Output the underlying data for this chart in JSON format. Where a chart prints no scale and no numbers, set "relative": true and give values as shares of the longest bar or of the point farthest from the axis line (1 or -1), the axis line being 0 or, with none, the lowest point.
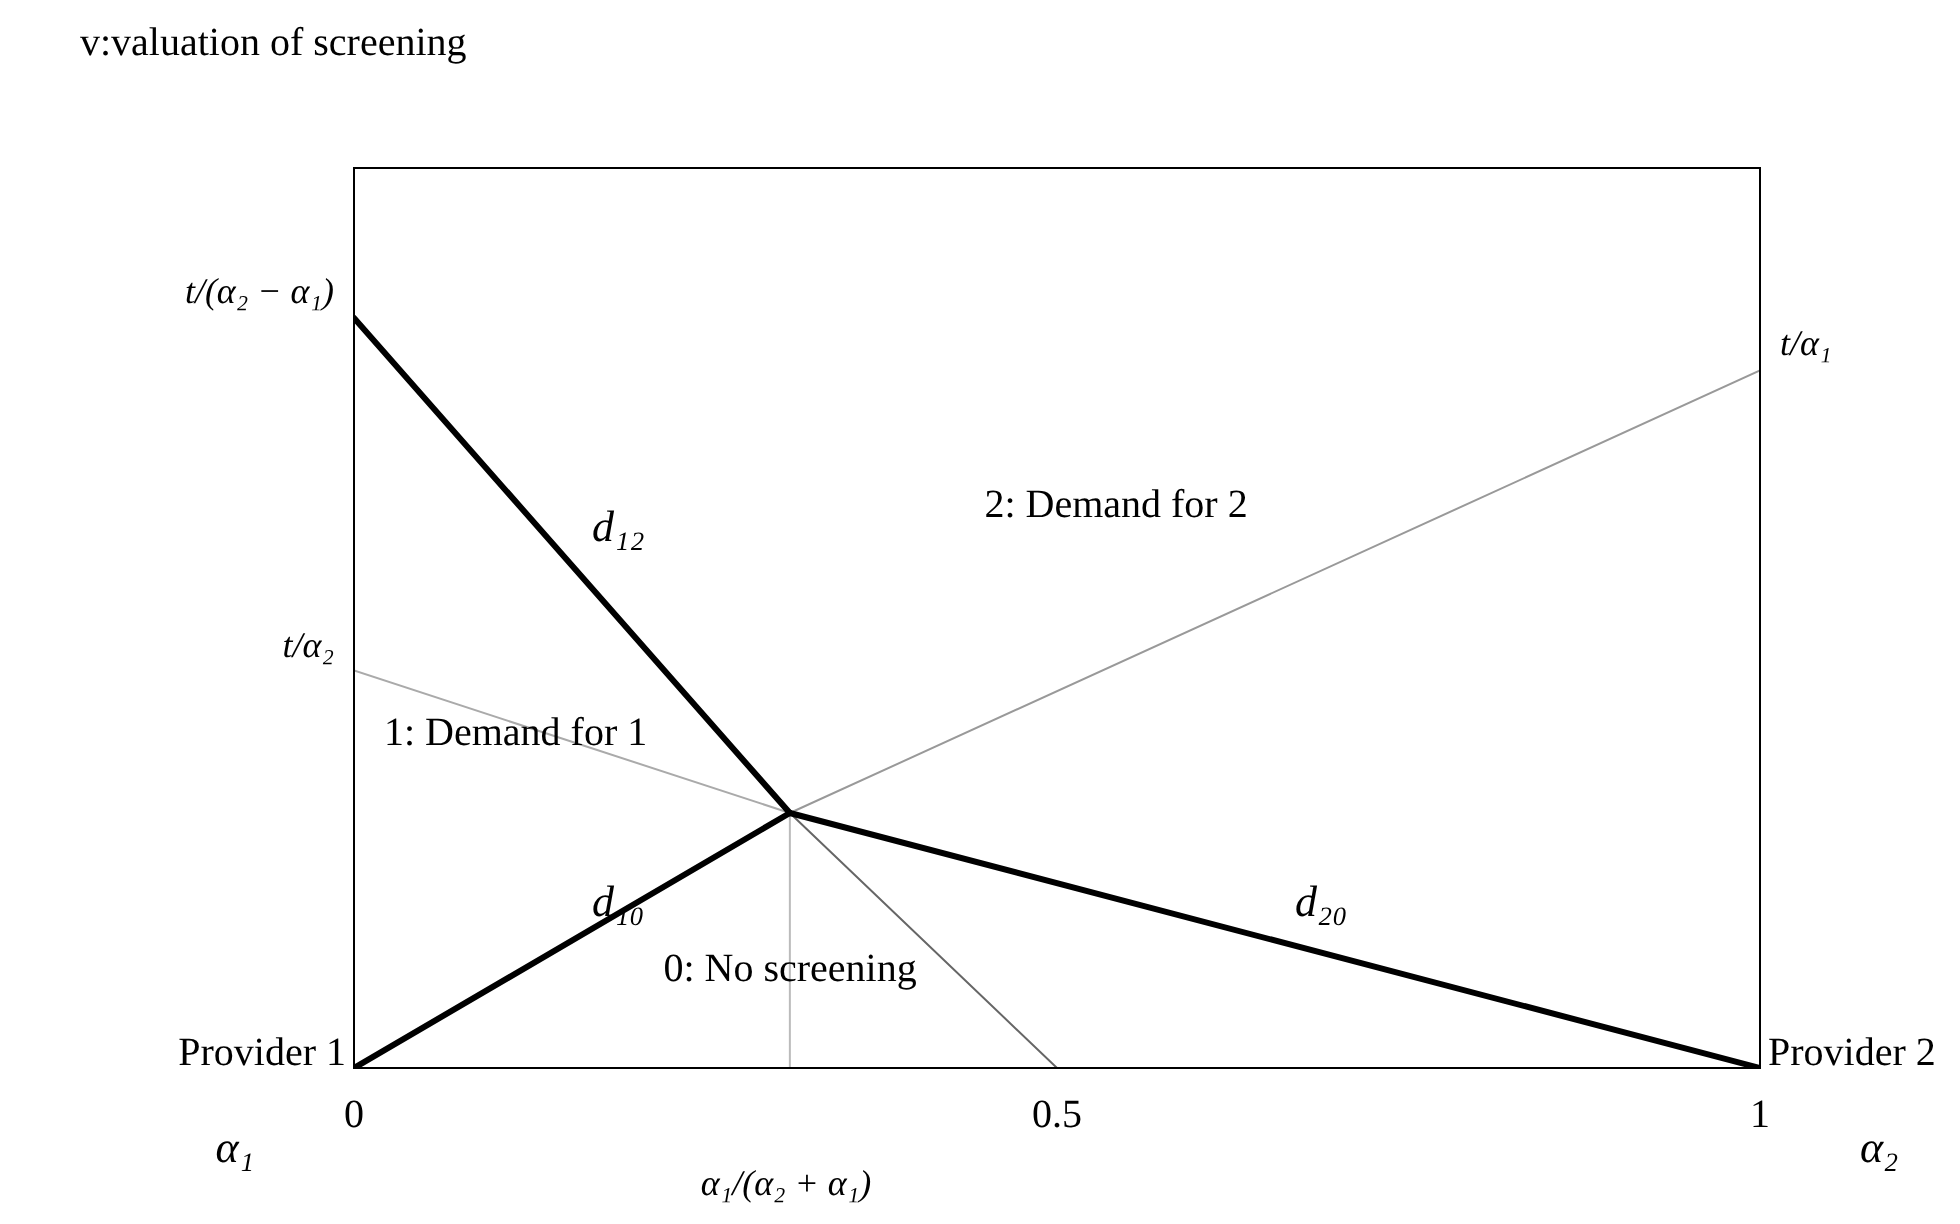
{
  "chart_data": {
    "type": "line",
    "relative": true,
    "xlim": [
      0,
      1
    ],
    "xticks": [
      0,
      0.5,
      1
    ],
    "grid": false,
    "legend": false,
    "marker": "none",
    "line_style": "solid",
    "series": [
      {
        "name": "d₁₂",
        "color": "#000000",
        "x": [
          0,
          0.31
        ],
        "values": [
          1,
          0.34
        ]
      },
      {
        "name": "d₁₀",
        "color": "#000000",
        "x": [
          0,
          0.31
        ],
        "values": [
          0,
          0.34
        ]
      },
      {
        "name": "d₂₀",
        "color": "#000000",
        "x": [
          0.31,
          1
        ],
        "values": [
          0.34,
          0
        ]
      },
      {
        "color": "#aaaaaa",
        "x": [
          0,
          0.31
        ],
        "values": [
          0.53,
          0.34
        ]
      },
      {
        "color": "#999999",
        "x": [
          0.31,
          1
        ],
        "values": [
          0.34,
          0.93
        ]
      },
      {
        "color": "#666666",
        "x": [
          0.31,
          0.5
        ],
        "values": [
          0.34,
          0
        ]
      },
      {
        "color": "#bbbbbb",
        "x": [
          0.31,
          0.31
        ],
        "values": [
          0,
          0.34
        ]
      }
    ],
    "annotations": [
      "t/(α₂ − α₁)",
      "t/α₂",
      "t/α₁",
      "α₁/(α₂ + α₁)",
      "2: Demand for 2",
      "1: Demand for 1",
      "0: No screening",
      "Provider 1",
      "α₁",
      "Provider 2",
      "α₂",
      "v:valuation of screening"
    ]
  }
}
